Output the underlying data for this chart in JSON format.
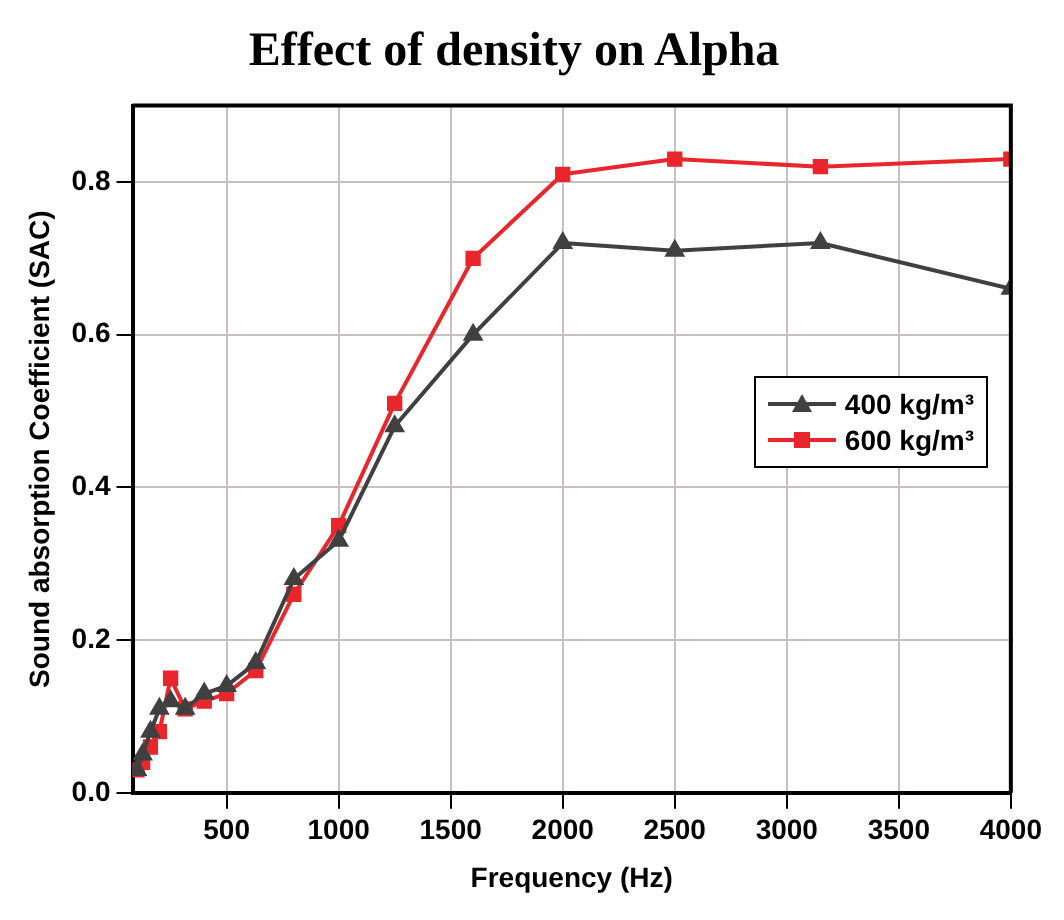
{
  "chart_data": {
    "type": "line",
    "title": "Effect of density on Alpha",
    "xlabel": "Frequency (Hz)",
    "ylabel": "Sound absorption Coefficient (SAC)",
    "x": [
      100,
      125,
      160,
      200,
      250,
      315,
      400,
      500,
      630,
      800,
      1000,
      1250,
      1600,
      2000,
      2500,
      3150,
      4000
    ],
    "series": [
      {
        "name": "400 kg/m³",
        "color": "#404040",
        "marker": "triangle",
        "values": [
          0.03,
          0.05,
          0.08,
          0.11,
          0.12,
          0.11,
          0.13,
          0.14,
          0.17,
          0.28,
          0.33,
          0.48,
          0.6,
          0.72,
          0.71,
          0.72,
          0.66
        ]
      },
      {
        "name": "600 kg/m³",
        "color": "#e8262b",
        "marker": "square",
        "values": [
          0.03,
          0.04,
          0.06,
          0.08,
          0.15,
          0.11,
          0.12,
          0.13,
          0.16,
          0.26,
          0.35,
          0.51,
          0.7,
          0.81,
          0.83,
          0.82,
          0.83
        ]
      }
    ],
    "xlim": [
      80,
      4000
    ],
    "xticks": [
      500,
      1000,
      1500,
      2000,
      2500,
      3000,
      3500,
      4000
    ],
    "ylim": [
      0,
      0.9
    ],
    "yticks": [
      {
        "value": 0,
        "label": "0.0"
      },
      0.2,
      0.4,
      0.6,
      0.8
    ],
    "grid": true,
    "legend": "right",
    "line_style": "solid"
  }
}
